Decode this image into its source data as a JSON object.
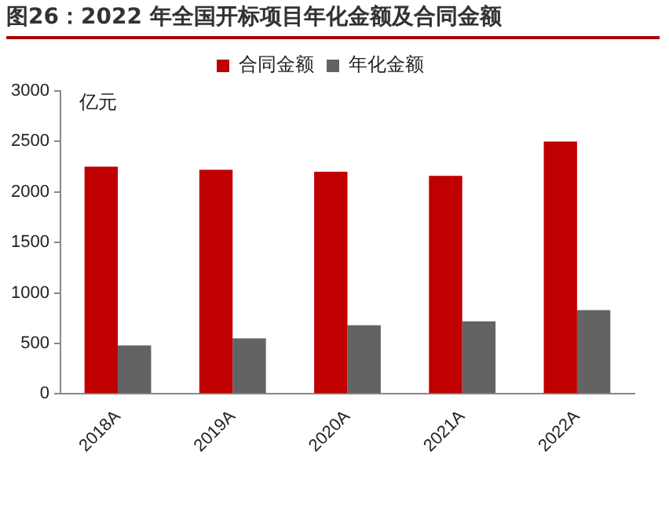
{
  "chart_data": {
    "type": "bar",
    "title": "图26：2022 年全国开标项目年化金额及合同金额",
    "ylabel": "亿元",
    "categories": [
      "2018A",
      "2019A",
      "2020A",
      "2021A",
      "2022A"
    ],
    "series": [
      {
        "name": "合同金额",
        "color": "#c00000",
        "values": [
          2250,
          2220,
          2200,
          2160,
          2500
        ]
      },
      {
        "name": "年化金额",
        "color": "#636363",
        "values": [
          480,
          550,
          680,
          720,
          830
        ]
      }
    ],
    "ylim": [
      0,
      3000
    ],
    "yticks": [
      0,
      500,
      1000,
      1500,
      2000,
      2500,
      3000
    ],
    "grid": false,
    "legend": "top"
  }
}
